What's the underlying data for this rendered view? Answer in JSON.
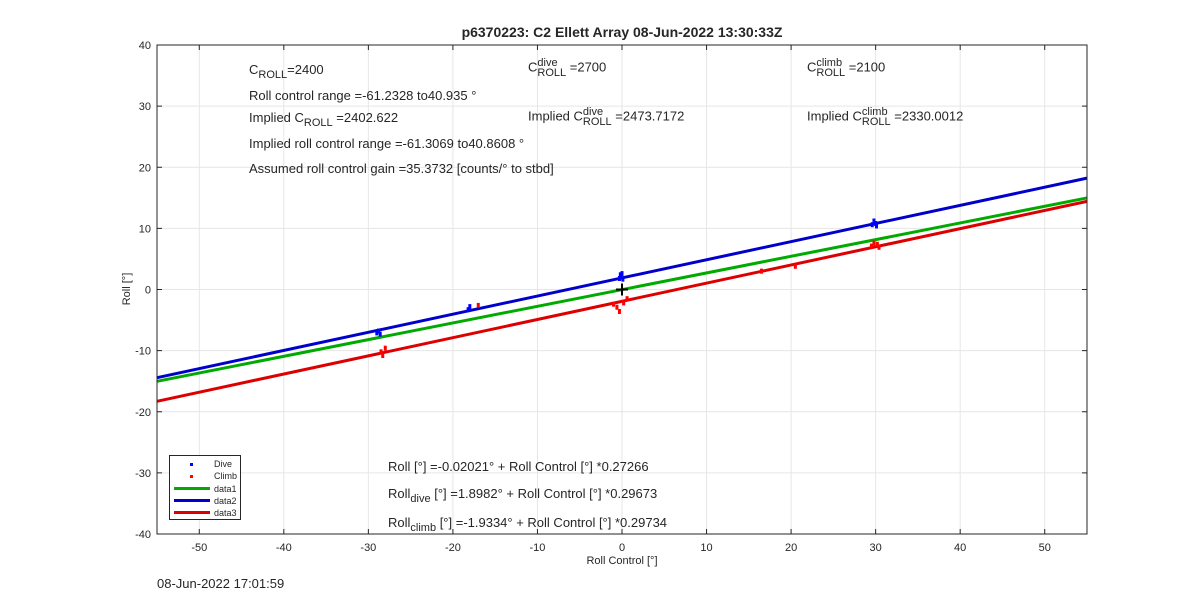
{
  "title": "p6370223: C2 Ellett Array 08-Jun-2022 13:30:33Z",
  "footer_timestamp": "08-Jun-2022 17:01:59",
  "annotations": {
    "c_roll": {
      "prefix": "C",
      "sub": "ROLL",
      "value": "=2400"
    },
    "c_roll_dive": {
      "prefix": "C",
      "sup": "dive",
      "sub": "ROLL",
      "value": " =2700"
    },
    "c_roll_climb": {
      "prefix": "C",
      "sup": "climb",
      "sub": "ROLL",
      "value": " =2100"
    },
    "roll_control_range": "Roll control range =-61.2328 to40.935 °",
    "implied_c_roll": {
      "prefix": "Implied C",
      "sub": "ROLL",
      "value": " =2402.622"
    },
    "implied_c_roll_dive": {
      "prefix": "Implied C",
      "sup": "dive",
      "sub": "ROLL",
      "value": " =2473.7172"
    },
    "implied_c_roll_climb": {
      "prefix": "Implied C",
      "sup": "climb",
      "sub": "ROLL",
      "value": " =2330.0012"
    },
    "implied_range": "Implied roll control range =-61.3069 to40.8608 °",
    "assumed_gain": "Assumed roll control gain =35.3732 [counts/° to stbd]",
    "fit_all": "Roll [°] =-0.02021° + Roll Control [°] *0.27266",
    "fit_dive": {
      "prefix": "Roll",
      "sub": "dive",
      "rest": " [°] =1.8982° + Roll Control [°] *0.29673"
    },
    "fit_climb": {
      "prefix": "Roll",
      "sub": "climb",
      "rest": " [°] =-1.9334° + Roll Control [°] *0.29734"
    }
  },
  "chart_data": {
    "type": "scatter",
    "title": "p6370223: C2 Ellett Array 08-Jun-2022 13:30:33Z",
    "xlabel": "Roll Control [°]",
    "ylabel": "Roll [°]",
    "xlim": [
      -55,
      55
    ],
    "ylim": [
      -40,
      40
    ],
    "xticks": [
      -50,
      -40,
      -30,
      -20,
      -10,
      0,
      10,
      20,
      30,
      40,
      50
    ],
    "yticks": [
      -40,
      -30,
      -20,
      -10,
      0,
      10,
      20,
      30,
      40
    ],
    "grid": true,
    "legend_position": "bottom-left",
    "series": [
      {
        "name": "Dive",
        "kind": "points",
        "color": "#0000ff",
        "points": [
          [
            -29,
            -7.1
          ],
          [
            -28.8,
            -6.8
          ],
          [
            -28.6,
            -7.3
          ],
          [
            -18.2,
            -3.3
          ],
          [
            -18,
            -2.8
          ],
          [
            -0.3,
            1.8
          ],
          [
            -0.2,
            2.4
          ],
          [
            0,
            2.6
          ],
          [
            0.1,
            1.7
          ],
          [
            -0.1,
            2.1
          ],
          [
            29.6,
            10.6
          ],
          [
            29.8,
            11.2
          ],
          [
            30,
            10.8
          ],
          [
            30.1,
            10.4
          ]
        ]
      },
      {
        "name": "Climb",
        "kind": "points",
        "color": "#ff0000",
        "points": [
          [
            -28.5,
            -10.2
          ],
          [
            -28.3,
            -10.8
          ],
          [
            -28,
            -9.6
          ],
          [
            -17,
            -2.6
          ],
          [
            -1,
            -2.4
          ],
          [
            -0.6,
            -2.9
          ],
          [
            -0.3,
            -3.6
          ],
          [
            0.2,
            -2.2
          ],
          [
            0.6,
            -1.5
          ],
          [
            16.5,
            3
          ],
          [
            20.5,
            3.8
          ],
          [
            29.5,
            7.1
          ],
          [
            29.8,
            7.6
          ],
          [
            30.2,
            7.4
          ],
          [
            30.4,
            6.9
          ]
        ]
      },
      {
        "name": "data1",
        "kind": "line",
        "color": "#00aa00",
        "intercept": -0.02021,
        "slope": 0.27266
      },
      {
        "name": "data2",
        "kind": "line",
        "color": "#0000cc",
        "intercept": 1.8982,
        "slope": 0.29673
      },
      {
        "name": "data3",
        "kind": "line",
        "color": "#dd0000",
        "intercept": -1.9334,
        "slope": 0.29734
      }
    ],
    "marker": {
      "x": 0,
      "y": 0,
      "color": "#000000",
      "shape": "plus"
    }
  }
}
